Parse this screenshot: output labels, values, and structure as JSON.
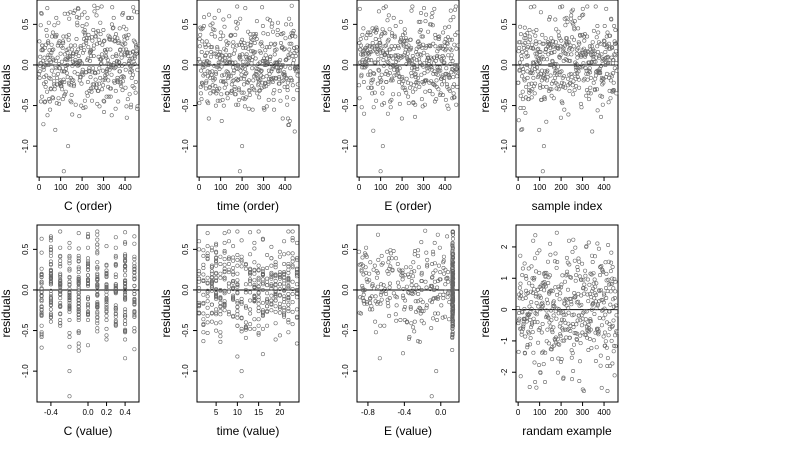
{
  "chart_data": [
    {
      "type": "scatter",
      "xlabel": "C (order)",
      "ylabel": "residuals",
      "xticks": [
        "0",
        "100",
        "200",
        "300",
        "400"
      ],
      "yticks": [
        "0.5",
        "0.0",
        "-0.5",
        "-1.0"
      ],
      "xlim": [
        -10,
        465
      ],
      "ylim": [
        -1.38,
        0.8
      ],
      "hline": 0,
      "x_mode": "order",
      "n": 460,
      "x": [],
      "y": [],
      "outliers": [
        [
          115,
          -1.31
        ],
        [
          135,
          -1.0
        ]
      ]
    },
    {
      "type": "scatter",
      "xlabel": "time (order)",
      "ylabel": "residuals",
      "xticks": [
        "0",
        "100",
        "200",
        "300",
        "400"
      ],
      "yticks": [
        "0.5",
        "0.0",
        "-0.5",
        "-1.0"
      ],
      "xlim": [
        -10,
        465
      ],
      "ylim": [
        -1.38,
        0.8
      ],
      "hline": 0,
      "x_mode": "order",
      "n": 460,
      "x": [],
      "y": [],
      "outliers": [
        [
          190,
          -1.31
        ],
        [
          200,
          -1.0
        ]
      ]
    },
    {
      "type": "scatter",
      "xlabel": "E (order)",
      "ylabel": "residuals",
      "xticks": [
        "0",
        "100",
        "200",
        "300",
        "400"
      ],
      "yticks": [
        "0.5",
        "0.0",
        "-0.5",
        "-1.0"
      ],
      "xlim": [
        -10,
        465
      ],
      "ylim": [
        -1.38,
        0.8
      ],
      "hline": 0,
      "x_mode": "order",
      "n": 460,
      "x": [],
      "y": [],
      "outliers": [
        [
          100,
          -1.31
        ],
        [
          110,
          -1.0
        ]
      ]
    },
    {
      "type": "scatter",
      "xlabel": "sample index",
      "ylabel": "residuals",
      "xticks": [
        "0",
        "100",
        "200",
        "300",
        "400"
      ],
      "yticks": [
        "0.5",
        "0.0",
        "-0.5",
        "-1.0"
      ],
      "xlim": [
        -10,
        465
      ],
      "ylim": [
        -1.38,
        0.8
      ],
      "hline": 0,
      "x_mode": "order",
      "n": 460,
      "x": [],
      "y": [],
      "outliers": [
        [
          115,
          -1.31
        ],
        [
          120,
          -1.0
        ]
      ]
    },
    {
      "type": "scatter",
      "xlabel": "C (value)",
      "ylabel": "residuals",
      "xticks": [
        "-0.4",
        "0.0",
        "0.2",
        "0.4"
      ],
      "yticks": [
        "0.5",
        "0.0",
        "-0.5",
        "-1.0"
      ],
      "xlim": [
        -0.55,
        0.55
      ],
      "ylim": [
        -1.38,
        0.8
      ],
      "hline": 0,
      "x_mode": "discrete",
      "x_levels": [
        -0.5,
        -0.4,
        -0.3,
        -0.2,
        -0.1,
        0.0,
        0.1,
        0.2,
        0.3,
        0.4,
        0.5
      ],
      "n": 460,
      "x": [],
      "y": [],
      "outliers": [
        [
          -0.2,
          -1.31
        ],
        [
          -0.2,
          -1.0
        ]
      ]
    },
    {
      "type": "scatter",
      "xlabel": "time (value)",
      "ylabel": "residuals",
      "xticks": [
        "5",
        "10",
        "15",
        "20"
      ],
      "yticks": [
        "0.5",
        "0.0",
        "-0.5",
        "-1.0"
      ],
      "xlim": [
        0.5,
        24.5
      ],
      "ylim": [
        -1.38,
        0.8
      ],
      "hline": 0,
      "x_mode": "discrete",
      "x_levels": [
        1,
        2,
        3,
        4,
        5,
        6,
        7,
        8,
        9,
        10,
        11,
        12,
        13,
        14,
        15,
        16,
        17,
        18,
        19,
        20,
        21,
        22,
        23,
        24
      ],
      "n": 460,
      "x": [],
      "y": [],
      "outliers": [
        [
          11,
          -1.31
        ],
        [
          11,
          -1.0
        ]
      ]
    },
    {
      "type": "scatter",
      "xlabel": "E (value)",
      "ylabel": "residuals",
      "xticks": [
        "-0.8",
        "-0.4",
        "0.0"
      ],
      "yticks": [
        "0.5",
        "0.0",
        "-0.5",
        "-1.0"
      ],
      "xlim": [
        -0.92,
        0.2
      ],
      "ylim": [
        -1.38,
        0.8
      ],
      "hline": 0,
      "x_mode": "clustered",
      "cluster_at": 0.13,
      "n": 460,
      "x": [],
      "y": [],
      "outliers": [
        [
          -0.1,
          -1.31
        ],
        [
          -0.05,
          -1.0
        ]
      ]
    },
    {
      "type": "scatter",
      "xlabel": "randam example",
      "ylabel": "residuals",
      "xticks": [
        "0",
        "100",
        "200",
        "300",
        "400"
      ],
      "yticks": [
        "2",
        "1",
        "0",
        "-1",
        "-2"
      ],
      "xlim": [
        -10,
        465
      ],
      "ylim": [
        -2.95,
        2.7
      ],
      "hline": 0,
      "x_mode": "order_gauss",
      "n": 460,
      "x": [],
      "y": [],
      "outliers": []
    }
  ]
}
